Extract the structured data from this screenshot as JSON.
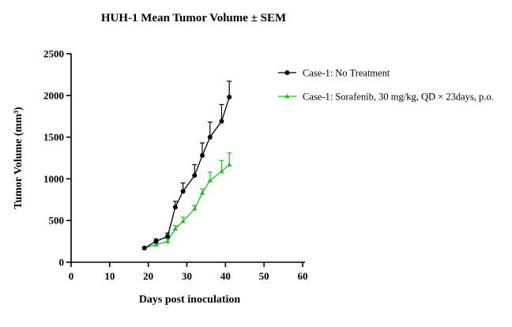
{
  "chart_data": {
    "type": "line",
    "title": "HUH-1 Mean Tumor Volume ± SEM",
    "xlabel": "Days post inoculation",
    "ylabel": "Tumor Volume (mm³)",
    "xlim": [
      0,
      60
    ],
    "ylim": [
      0,
      2500
    ],
    "xticks": [
      "0",
      "10",
      "20",
      "30",
      "40",
      "50",
      "60"
    ],
    "yticks": [
      "0",
      "500",
      "1000",
      "1500",
      "2000",
      "2500"
    ],
    "grid": false,
    "legend_position": "right",
    "series": [
      {
        "name": "Case-1: No Treatment",
        "color": "#000000",
        "marker": "circle",
        "x": [
          19,
          22,
          25,
          27,
          29,
          32,
          34,
          36,
          39,
          41
        ],
        "y": [
          170,
          250,
          310,
          660,
          850,
          1040,
          1280,
          1500,
          1690,
          1980
        ],
        "sem": [
          10,
          30,
          40,
          70,
          100,
          130,
          150,
          180,
          200,
          190
        ]
      },
      {
        "name": "Case-1: Sorafenib, 30 mg/kg, QD × 23days, p.o.",
        "color": "#22bb22",
        "marker": "triangle",
        "x": [
          19,
          22,
          25,
          27,
          29,
          32,
          34,
          36,
          39,
          41
        ],
        "y": [
          170,
          210,
          250,
          400,
          490,
          640,
          830,
          980,
          1090,
          1170
        ],
        "sem": [
          10,
          20,
          30,
          40,
          50,
          40,
          50,
          100,
          130,
          140
        ]
      }
    ]
  }
}
